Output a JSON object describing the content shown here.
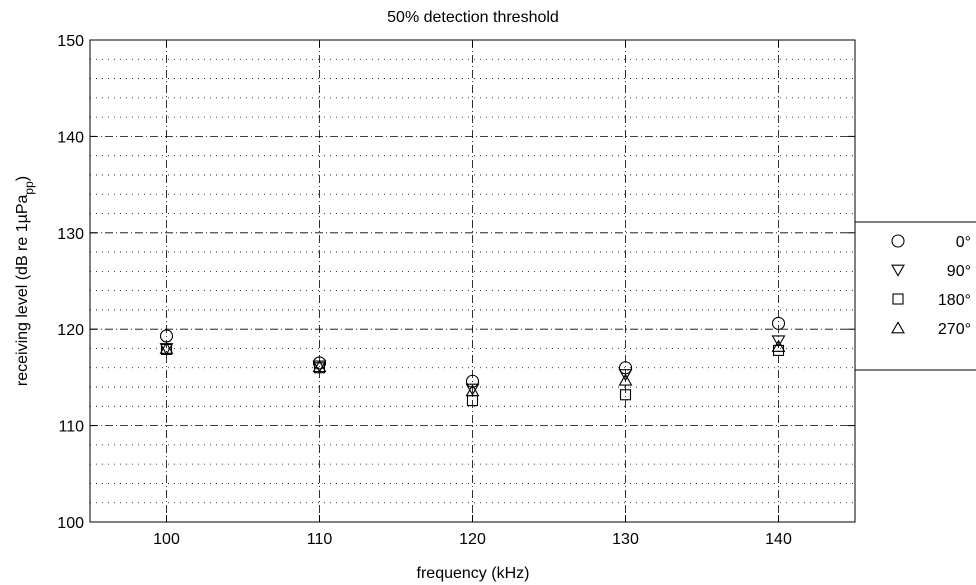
{
  "chart_data": {
    "type": "scatter",
    "title": "50% detection threshold",
    "xlabel": "frequency (kHz)",
    "ylabel_main": "receiving level (dB re 1µPa",
    "ylabel_sub": "pp",
    "ylabel_close": ")",
    "xlim": [
      95,
      145
    ],
    "ylim": [
      100,
      150
    ],
    "x_ticks": [
      100,
      110,
      120,
      130,
      140
    ],
    "y_ticks": [
      100,
      110,
      120,
      130,
      140,
      150
    ],
    "x_tick_labels": [
      "100",
      "110",
      "120",
      "130",
      "140"
    ],
    "y_tick_labels": [
      "100",
      "110",
      "120",
      "130",
      "140",
      "150"
    ],
    "y_minor_step": 2,
    "grid": true,
    "legend_position": "outside-right",
    "series": [
      {
        "name": "0°",
        "marker": "circle",
        "x": [
          100,
          110,
          120,
          130,
          140
        ],
        "y": [
          119.3,
          116.5,
          114.6,
          116.0,
          120.6
        ]
      },
      {
        "name": "90°",
        "marker": "triangle-down",
        "x": [
          100,
          110,
          120,
          130,
          140
        ],
        "y": [
          118.0,
          116.2,
          113.8,
          115.3,
          118.8
        ]
      },
      {
        "name": "180°",
        "marker": "square",
        "x": [
          100,
          110,
          120,
          130,
          140
        ],
        "y": [
          117.9,
          116.0,
          112.6,
          113.2,
          117.8
        ]
      },
      {
        "name": "270°",
        "marker": "triangle-up",
        "x": [
          100,
          110,
          120,
          130,
          140
        ],
        "y": [
          118.0,
          116.1,
          113.6,
          114.7,
          118.2
        ]
      }
    ]
  }
}
